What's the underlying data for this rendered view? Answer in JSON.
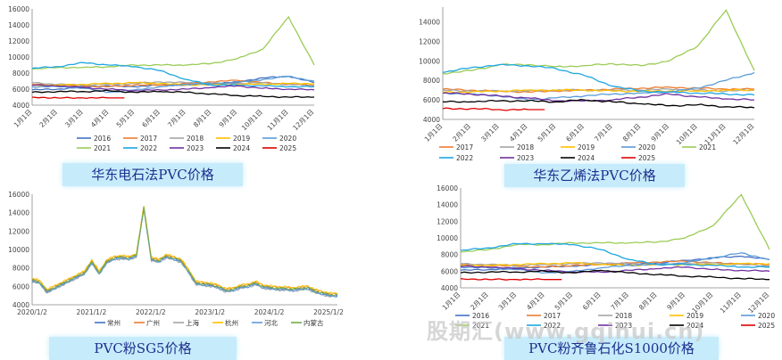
{
  "captions": [
    "华东电石法PVC价格",
    "华东乙烯法PVC价格",
    "PVC粉SG5价格",
    "PVC粉齐鲁石化S1000价格"
  ],
  "watermark": "股期汇(www.gqihui.cn)",
  "colors": {
    "2016": "#4472c4",
    "2017": "#ed7d31",
    "2018": "#a5a5a5",
    "2019": "#ffc000",
    "2020": "#5b9bd5",
    "2021": "#9bcc55",
    "2022": "#1ea7e1",
    "2023": "#7030a0",
    "2024": "#000000",
    "2025": "#e00000",
    "常州": "#4472c4",
    "广州": "#ed7d31",
    "上海": "#a5a5a5",
    "杭州": "#ffc000",
    "河北": "#5b9bd5",
    "内蒙古": "#70ad47"
  },
  "chart_data": [
    {
      "type": "line",
      "title": "华东电石法PVC价格",
      "categories": [
        "1月1日",
        "2月1日",
        "3月1日",
        "4月1日",
        "5月1日",
        "6月1日",
        "7月1日",
        "8月1日",
        "9月1日",
        "10月1日",
        "11月1日",
        "12月1日"
      ],
      "ylim": [
        4000,
        16000
      ],
      "yticks": [
        4000,
        6000,
        8000,
        10000,
        12000,
        14000,
        16000
      ],
      "legend_position": "bottom",
      "series": [
        {
          "name": "2016",
          "values": [
            5900,
            6000,
            6300,
            6400,
            6300,
            6500,
            6500,
            6600,
            6900,
            7400,
            7600,
            6800
          ]
        },
        {
          "name": "2017",
          "values": [
            6600,
            6500,
            6400,
            6300,
            6500,
            6500,
            6700,
            6900,
            7100,
            6800,
            6600,
            6500
          ]
        },
        {
          "name": "2018",
          "values": [
            6800,
            6600,
            6500,
            6600,
            6700,
            6900,
            6800,
            6700,
            6700,
            6800,
            6600,
            6400
          ]
        },
        {
          "name": "2019",
          "values": [
            6500,
            6500,
            6600,
            6700,
            6800,
            6700,
            6500,
            6600,
            6600,
            6600,
            6700,
            6700
          ]
        },
        {
          "name": "2020",
          "values": [
            6300,
            6300,
            6100,
            5600,
            5900,
            6300,
            6600,
            6700,
            6800,
            7200,
            7600,
            7000
          ]
        },
        {
          "name": "2021",
          "values": [
            8500,
            8700,
            8700,
            8800,
            9000,
            9000,
            9000,
            9200,
            9800,
            11000,
            15000,
            9000
          ]
        },
        {
          "name": "2022",
          "values": [
            8600,
            8800,
            9300,
            9000,
            8800,
            8300,
            7200,
            6500,
            6500,
            6400,
            6300,
            6300
          ]
        },
        {
          "name": "2023",
          "values": [
            6500,
            6400,
            6200,
            6000,
            5800,
            5900,
            6000,
            6200,
            6400,
            6100,
            6000,
            5900
          ]
        },
        {
          "name": "2024",
          "values": [
            5600,
            5700,
            5700,
            5800,
            5600,
            5700,
            5600,
            5400,
            5200,
            5100,
            5000,
            5000
          ]
        },
        {
          "name": "2025",
          "values": [
            5000,
            4900,
            4900,
            4900,
            null,
            null,
            null,
            null,
            null,
            null,
            null,
            null
          ]
        }
      ]
    },
    {
      "type": "line",
      "title": "华东乙烯法PVC价格",
      "categories": [
        "1月1日",
        "2月1日",
        "3月1日",
        "4月1日",
        "5月1日",
        "6月1日",
        "7月1日",
        "8月1日",
        "9月1日",
        "10月1日",
        "11月1日",
        "12月1日"
      ],
      "ylim": [
        4000,
        15500
      ],
      "yticks": [
        4000,
        6000,
        8000,
        10000,
        12000,
        14000
      ],
      "legend_position": "bottom",
      "series": [
        {
          "name": "2017",
          "values": [
            7100,
            7000,
            6900,
            6800,
            6900,
            7000,
            7100,
            7200,
            7300,
            7200,
            7100,
            7100
          ]
        },
        {
          "name": "2018",
          "values": [
            7000,
            6900,
            6900,
            6900,
            7000,
            7000,
            7000,
            7000,
            7100,
            7000,
            6900,
            7000
          ]
        },
        {
          "name": "2019",
          "values": [
            6800,
            6800,
            6900,
            7000,
            7000,
            7000,
            6900,
            6900,
            6900,
            6900,
            7000,
            7000
          ]
        },
        {
          "name": "2020",
          "values": [
            6700,
            6600,
            6400,
            6000,
            6200,
            6400,
            6600,
            6700,
            6800,
            7200,
            8000,
            8800
          ]
        },
        {
          "name": "2021",
          "values": [
            8700,
            9000,
            9600,
            9600,
            9400,
            9500,
            9700,
            9500,
            10000,
            11500,
            15200,
            9000
          ]
        },
        {
          "name": "2022",
          "values": [
            8800,
            9300,
            9600,
            9500,
            9200,
            8500,
            7400,
            6900,
            6800,
            6700,
            6600,
            6500
          ]
        },
        {
          "name": "2023",
          "values": [
            6700,
            6600,
            6400,
            6200,
            5900,
            5900,
            6000,
            6300,
            6600,
            6300,
            6100,
            6000
          ]
        },
        {
          "name": "2024",
          "values": [
            5800,
            5800,
            5900,
            5900,
            5800,
            6000,
            5800,
            5600,
            5400,
            5500,
            5300,
            5200
          ]
        },
        {
          "name": "2025",
          "values": [
            5100,
            5100,
            5000,
            5000,
            null,
            null,
            null,
            null,
            null,
            null,
            null,
            null
          ]
        }
      ]
    },
    {
      "type": "line",
      "title": "PVC粉SG5价格",
      "x": [
        "2020/1/2",
        "2021/1/2",
        "2022/1/2",
        "2023/1/2",
        "2024/1/2",
        "2025/1/2"
      ],
      "ylim": [
        4000,
        16000
      ],
      "yticks": [
        4000,
        6000,
        8000,
        10000,
        12000,
        14000,
        16000
      ],
      "legend_position": "bottom",
      "legend": [
        "常州",
        "广州",
        "上海",
        "杭州",
        "河北",
        "内蒙古"
      ],
      "base_series": [
        6600,
        6400,
        5400,
        5800,
        6200,
        6600,
        7000,
        7400,
        8600,
        7400,
        8600,
        9000,
        9100,
        9000,
        9300,
        14500,
        8900,
        8700,
        9200,
        9000,
        8700,
        7600,
        6300,
        6200,
        6100,
        5900,
        5500,
        5600,
        5900,
        6000,
        6300,
        5900,
        5800,
        5700,
        5700,
        5600,
        5700,
        5800,
        5400,
        5200,
        5000,
        5000
      ]
    },
    {
      "type": "line",
      "title": "PVC粉齐鲁石化S1000价格",
      "categories": [
        "1月1日",
        "2月1日",
        "3月1日",
        "4月1日",
        "5月1日",
        "6月1日",
        "7月1日",
        "8月1日",
        "9月1日",
        "10月1日",
        "11月1日",
        "12月1日"
      ],
      "ylim": [
        4000,
        16000
      ],
      "yticks": [
        4000,
        6000,
        8000,
        10000,
        12000,
        14000,
        16000
      ],
      "legend_position": "bottom",
      "series": [
        {
          "name": "2016",
          "values": [
            6100,
            6200,
            6400,
            6500,
            6600,
            6800,
            6800,
            7000,
            7300,
            7600,
            7800,
            7400
          ]
        },
        {
          "name": "2017",
          "values": [
            6800,
            6700,
            6600,
            6500,
            6700,
            6800,
            7000,
            7100,
            7200,
            7000,
            6900,
            6800
          ]
        },
        {
          "name": "2018",
          "values": [
            6900,
            6800,
            6700,
            6800,
            6900,
            7000,
            6900,
            6800,
            6900,
            7000,
            6800,
            6600
          ]
        },
        {
          "name": "2019",
          "values": [
            6700,
            6700,
            6800,
            6900,
            7000,
            6800,
            6700,
            6800,
            6800,
            6800,
            6900,
            6900
          ]
        },
        {
          "name": "2020",
          "values": [
            6500,
            6400,
            6200,
            5800,
            6000,
            6400,
            6700,
            6800,
            7000,
            7600,
            8200,
            7400
          ]
        },
        {
          "name": "2021",
          "values": [
            8300,
            8600,
            9200,
            9200,
            9400,
            9400,
            9400,
            9500,
            10000,
            11500,
            15200,
            8600
          ]
        },
        {
          "name": "2022",
          "values": [
            8500,
            8800,
            9300,
            9300,
            9200,
            8600,
            7400,
            6800,
            6800,
            6700,
            6500,
            6500
          ]
        },
        {
          "name": "2023",
          "values": [
            6600,
            6500,
            6300,
            6100,
            5900,
            5900,
            6100,
            6300,
            6500,
            6200,
            6100,
            6000
          ]
        },
        {
          "name": "2024",
          "values": [
            5800,
            5900,
            5900,
            6000,
            5800,
            6100,
            5800,
            5600,
            5400,
            5300,
            5100,
            5000
          ]
        },
        {
          "name": "2025",
          "values": [
            5100,
            5000,
            5000,
            5000,
            null,
            null,
            null,
            null,
            null,
            null,
            null,
            null
          ]
        }
      ]
    }
  ]
}
